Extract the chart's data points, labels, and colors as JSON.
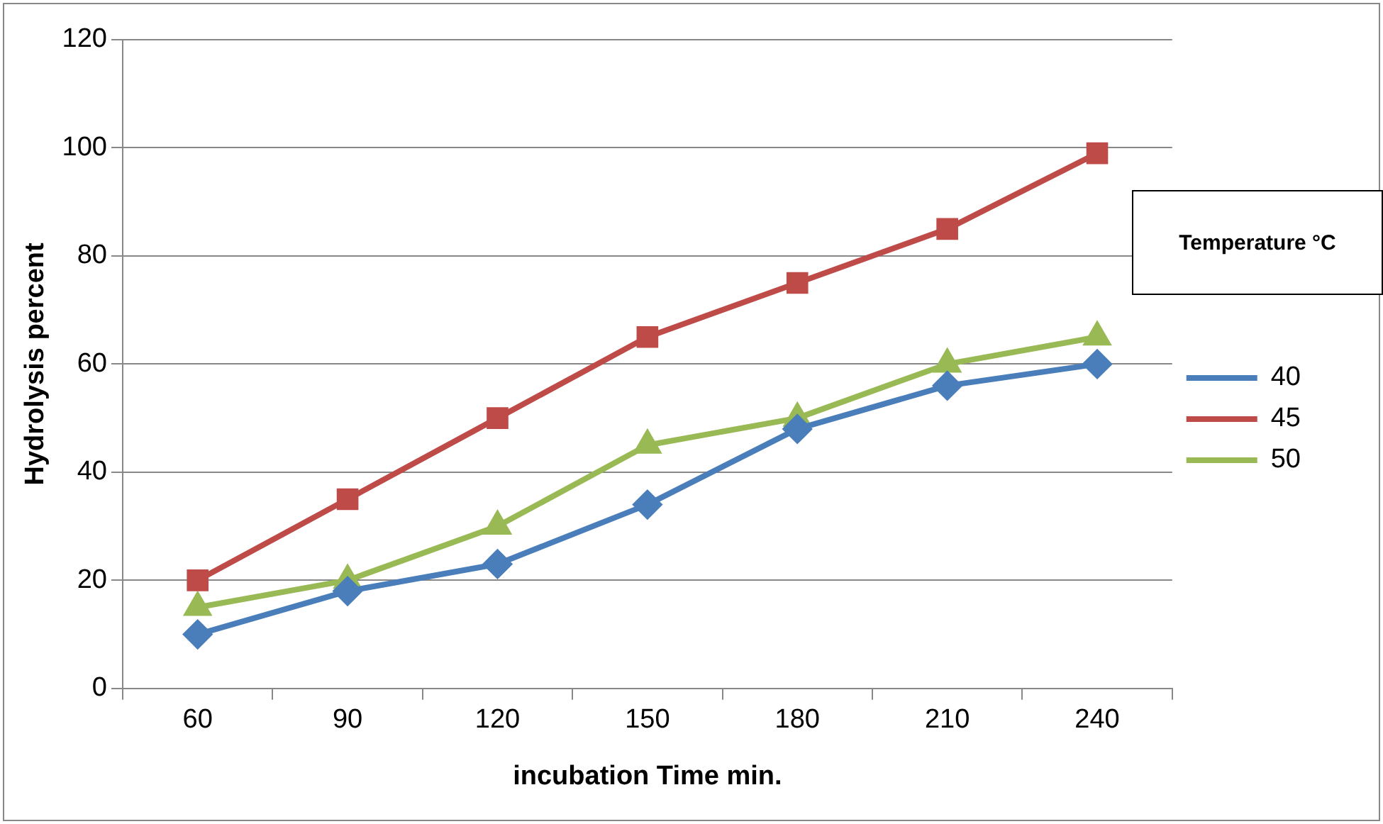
{
  "chart_data": {
    "type": "line",
    "xlabel": "incubation Time min.",
    "ylabel": "Hydrolysis percent",
    "legend_title": "Temperature °C",
    "categories": [
      "60",
      "90",
      "120",
      "150",
      "180",
      "210",
      "240"
    ],
    "series": [
      {
        "name": "40",
        "color": "#4a7ebb",
        "marker": "diamond",
        "values": [
          10,
          18,
          23,
          34,
          48,
          56,
          60
        ]
      },
      {
        "name": "45",
        "color": "#be4b48",
        "marker": "square",
        "values": [
          20,
          35,
          50,
          65,
          75,
          85,
          99
        ]
      },
      {
        "name": "50",
        "color": "#98b954",
        "marker": "triangle",
        "values": [
          15,
          20,
          30,
          45,
          50,
          60,
          65
        ]
      }
    ],
    "ylim": [
      0,
      120
    ],
    "yticks": [
      0,
      20,
      40,
      60,
      80,
      100,
      120
    ],
    "grid": "y",
    "legend": "right"
  }
}
